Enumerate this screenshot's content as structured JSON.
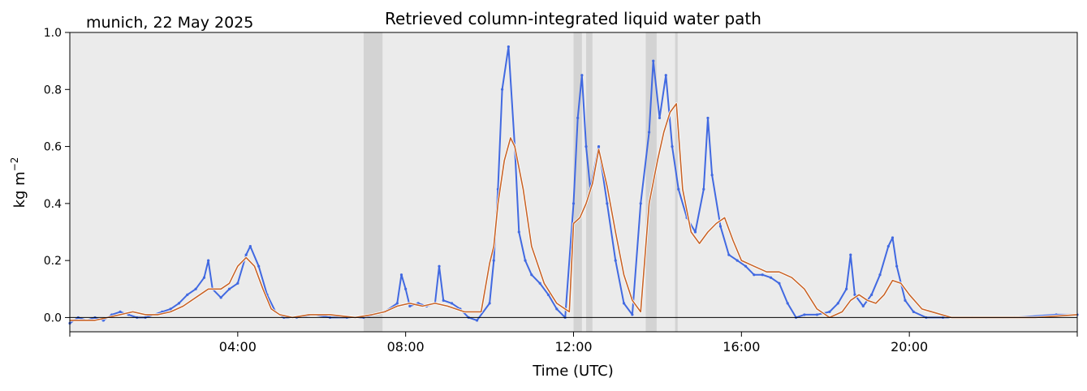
{
  "chart_data": {
    "type": "line",
    "title": "Retrieved column-integrated liquid water path",
    "subtitle": "munich, 22 May 2025",
    "xlabel": "Time (UTC)",
    "ylabel": "kg m",
    "ylabel_exponent": "−2",
    "xlim": [
      0,
      24
    ],
    "ylim": [
      -0.05,
      1.0
    ],
    "x_ticks": [
      0,
      4,
      8,
      12,
      16,
      20,
      24
    ],
    "x_tick_labels": [
      "",
      "04:00",
      "08:00",
      "12:00",
      "16:00",
      "20:00",
      ""
    ],
    "y_ticks": [
      0.0,
      0.2,
      0.4,
      0.6,
      0.8,
      1.0
    ],
    "y_tick_labels": [
      "0.0",
      "0.2",
      "0.4",
      "0.6",
      "0.8",
      "1.0"
    ],
    "grid": false,
    "zero_line": true,
    "flagged_periods": [
      [
        7.0,
        7.45
      ],
      [
        12.0,
        12.2
      ],
      [
        12.3,
        12.45
      ],
      [
        13.72,
        13.98
      ],
      [
        14.42,
        14.48
      ]
    ],
    "series": [
      {
        "color": "#4169e1",
        "style": "points",
        "x": [
          0.0,
          0.2,
          0.4,
          0.6,
          0.8,
          1.0,
          1.2,
          1.4,
          1.6,
          1.8,
          2.0,
          2.2,
          2.4,
          2.6,
          2.8,
          3.0,
          3.2,
          3.3,
          3.4,
          3.6,
          3.8,
          4.0,
          4.2,
          4.3,
          4.5,
          4.7,
          4.9,
          5.1,
          5.4,
          5.8,
          6.2,
          6.6,
          7.0,
          7.5,
          7.8,
          7.9,
          8.0,
          8.1,
          8.3,
          8.5,
          8.7,
          8.8,
          8.9,
          9.1,
          9.3,
          9.5,
          9.7,
          10.0,
          10.1,
          10.2,
          10.3,
          10.45,
          10.6,
          10.7,
          10.85,
          11.0,
          11.2,
          11.4,
          11.6,
          11.8,
          12.0,
          12.1,
          12.2,
          12.3,
          12.4,
          12.6,
          12.8,
          13.0,
          13.2,
          13.4,
          13.6,
          13.8,
          13.9,
          14.05,
          14.2,
          14.35,
          14.5,
          14.7,
          14.9,
          15.1,
          15.2,
          15.3,
          15.5,
          15.7,
          15.9,
          16.1,
          16.3,
          16.5,
          16.7,
          16.9,
          17.1,
          17.3,
          17.5,
          17.8,
          18.1,
          18.3,
          18.5,
          18.6,
          18.7,
          18.9,
          19.1,
          19.3,
          19.5,
          19.6,
          19.7,
          19.9,
          20.1,
          20.4,
          20.8,
          21.5,
          22.5,
          23.5,
          24.0
        ],
        "y": [
          -0.02,
          0.0,
          -0.01,
          0.0,
          -0.01,
          0.01,
          0.02,
          0.01,
          0.0,
          0.0,
          0.01,
          0.02,
          0.03,
          0.05,
          0.08,
          0.1,
          0.14,
          0.2,
          0.1,
          0.07,
          0.1,
          0.12,
          0.22,
          0.25,
          0.18,
          0.08,
          0.02,
          0.0,
          0.0,
          0.01,
          0.0,
          0.0,
          0.0,
          0.02,
          0.05,
          0.15,
          0.1,
          0.04,
          0.05,
          0.04,
          0.05,
          0.18,
          0.06,
          0.05,
          0.03,
          0.0,
          -0.01,
          0.05,
          0.2,
          0.45,
          0.8,
          0.95,
          0.6,
          0.3,
          0.2,
          0.15,
          0.12,
          0.08,
          0.03,
          0.0,
          0.4,
          0.7,
          0.85,
          0.6,
          0.45,
          0.6,
          0.4,
          0.2,
          0.05,
          0.01,
          0.4,
          0.65,
          0.9,
          0.7,
          0.85,
          0.6,
          0.45,
          0.35,
          0.3,
          0.45,
          0.7,
          0.5,
          0.32,
          0.22,
          0.2,
          0.18,
          0.15,
          0.15,
          0.14,
          0.12,
          0.05,
          0.0,
          0.01,
          0.01,
          0.02,
          0.05,
          0.1,
          0.22,
          0.08,
          0.04,
          0.08,
          0.15,
          0.25,
          0.28,
          0.18,
          0.06,
          0.02,
          0.0,
          0.0,
          0.0,
          0.0,
          0.01,
          0.01
        ]
      },
      {
        "color": "#c86428",
        "style": "line",
        "x": [
          0.0,
          0.3,
          0.6,
          0.9,
          1.2,
          1.5,
          1.8,
          2.1,
          2.4,
          2.7,
          3.0,
          3.3,
          3.6,
          3.8,
          4.0,
          4.2,
          4.4,
          4.6,
          4.8,
          5.0,
          5.3,
          5.7,
          6.2,
          6.8,
          7.2,
          7.5,
          7.8,
          8.1,
          8.4,
          8.7,
          9.0,
          9.4,
          9.8,
          10.0,
          10.1,
          10.2,
          10.35,
          10.5,
          10.6,
          10.8,
          11.0,
          11.3,
          11.6,
          11.9,
          12.0,
          12.15,
          12.3,
          12.45,
          12.6,
          12.8,
          13.0,
          13.2,
          13.4,
          13.6,
          13.8,
          14.0,
          14.15,
          14.3,
          14.45,
          14.6,
          14.8,
          15.0,
          15.2,
          15.4,
          15.6,
          15.8,
          16.0,
          16.3,
          16.6,
          16.9,
          17.2,
          17.5,
          17.8,
          18.1,
          18.4,
          18.6,
          18.8,
          19.0,
          19.2,
          19.4,
          19.6,
          19.8,
          20.0,
          20.3,
          21.0,
          22.0,
          23.0,
          24.0
        ],
        "y": [
          -0.01,
          -0.01,
          -0.01,
          0.0,
          0.01,
          0.02,
          0.01,
          0.01,
          0.02,
          0.04,
          0.07,
          0.1,
          0.1,
          0.12,
          0.18,
          0.21,
          0.18,
          0.1,
          0.03,
          0.01,
          0.0,
          0.01,
          0.01,
          0.0,
          0.01,
          0.02,
          0.04,
          0.05,
          0.04,
          0.05,
          0.04,
          0.02,
          0.02,
          0.19,
          0.25,
          0.4,
          0.55,
          0.63,
          0.6,
          0.45,
          0.25,
          0.12,
          0.05,
          0.02,
          0.33,
          0.35,
          0.4,
          0.47,
          0.59,
          0.46,
          0.3,
          0.15,
          0.06,
          0.02,
          0.4,
          0.55,
          0.65,
          0.72,
          0.75,
          0.45,
          0.3,
          0.26,
          0.3,
          0.33,
          0.35,
          0.27,
          0.2,
          0.18,
          0.16,
          0.16,
          0.14,
          0.1,
          0.03,
          0.0,
          0.02,
          0.06,
          0.08,
          0.06,
          0.05,
          0.08,
          0.13,
          0.12,
          0.08,
          0.03,
          0.0,
          0.0,
          0.0,
          0.01
        ]
      }
    ]
  }
}
